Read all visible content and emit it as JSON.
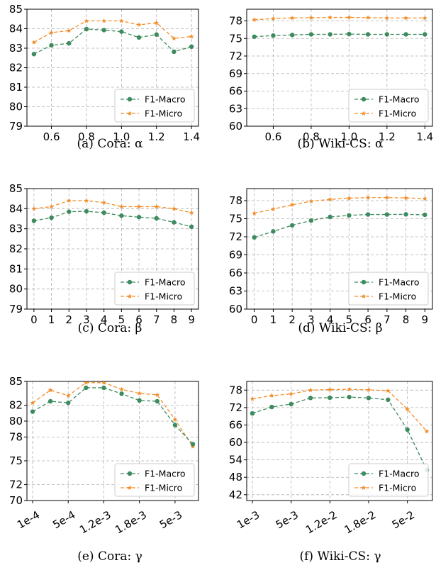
{
  "chart_data": [
    {
      "type": "line",
      "caption": "(a) Cora: α",
      "x": [
        0.5,
        0.6,
        0.7,
        0.8,
        0.9,
        1.0,
        1.1,
        1.2,
        1.3,
        1.4
      ],
      "x_ticks": [
        0.6,
        0.8,
        1.0,
        1.2,
        1.4
      ],
      "x_tick_labels": [
        "0.6",
        "0.8",
        "1.0",
        "1.2",
        "1.4"
      ],
      "xlim": [
        0.46,
        1.44
      ],
      "ylim": [
        79,
        85
      ],
      "y_ticks": [
        79,
        80,
        81,
        82,
        83,
        84,
        85
      ],
      "y_tick_labels": [
        "79",
        "80",
        "81",
        "82",
        "83",
        "84",
        "85"
      ],
      "grid": true,
      "legend_position": "lower-right",
      "series": [
        {
          "name": "F1-Macro",
          "color": "#3d8b5f",
          "marker": "circle",
          "values": [
            82.7,
            83.15,
            83.25,
            83.98,
            83.93,
            83.85,
            83.55,
            83.7,
            82.82,
            83.08
          ]
        },
        {
          "name": "F1-Micro",
          "color": "#f28e2b",
          "marker": "star",
          "values": [
            83.3,
            83.8,
            83.9,
            84.4,
            84.4,
            84.4,
            84.2,
            84.3,
            83.5,
            83.6
          ]
        }
      ]
    },
    {
      "type": "line",
      "caption": "(b) Wiki-CS: α",
      "x": [
        0.5,
        0.6,
        0.7,
        0.8,
        0.9,
        1.0,
        1.1,
        1.2,
        1.3,
        1.4
      ],
      "x_ticks": [
        0.6,
        0.8,
        1.0,
        1.2,
        1.4
      ],
      "x_tick_labels": [
        "0.6",
        "0.8",
        "1.0",
        "1.2",
        "1.4"
      ],
      "xlim": [
        0.46,
        1.44
      ],
      "ylim": [
        60,
        80
      ],
      "y_ticks": [
        60,
        63,
        66,
        69,
        72,
        75,
        78
      ],
      "y_tick_labels": [
        "60",
        "63",
        "66",
        "69",
        "72",
        "75",
        "78"
      ],
      "grid": true,
      "legend_position": "lower-right",
      "series": [
        {
          "name": "F1-Macro",
          "color": "#3d8b5f",
          "marker": "circle",
          "values": [
            75.3,
            75.5,
            75.6,
            75.7,
            75.7,
            75.75,
            75.7,
            75.7,
            75.7,
            75.7
          ]
        },
        {
          "name": "F1-Micro",
          "color": "#f28e2b",
          "marker": "star",
          "values": [
            78.2,
            78.4,
            78.5,
            78.55,
            78.6,
            78.6,
            78.55,
            78.5,
            78.5,
            78.5
          ]
        }
      ]
    },
    {
      "type": "line",
      "caption": "(c) Cora: β",
      "x": [
        0,
        1,
        2,
        3,
        4,
        5,
        6,
        7,
        8,
        9
      ],
      "x_ticks": [
        0,
        1,
        2,
        3,
        4,
        5,
        6,
        7,
        8,
        9
      ],
      "x_tick_labels": [
        "0",
        "1",
        "2",
        "3",
        "4",
        "5",
        "6",
        "7",
        "8",
        "9"
      ],
      "xlim": [
        -0.4,
        9.4
      ],
      "ylim": [
        79,
        85
      ],
      "y_ticks": [
        79,
        80,
        81,
        82,
        83,
        84,
        85
      ],
      "y_tick_labels": [
        "79",
        "80",
        "81",
        "82",
        "83",
        "84",
        "85"
      ],
      "grid": true,
      "legend_position": "lower-right",
      "series": [
        {
          "name": "F1-Macro",
          "color": "#3d8b5f",
          "marker": "circle",
          "values": [
            83.4,
            83.55,
            83.85,
            83.87,
            83.8,
            83.65,
            83.58,
            83.52,
            83.32,
            83.1
          ]
        },
        {
          "name": "F1-Micro",
          "color": "#f28e2b",
          "marker": "star",
          "values": [
            84.0,
            84.1,
            84.4,
            84.4,
            84.3,
            84.1,
            84.1,
            84.1,
            84.0,
            83.8
          ]
        }
      ]
    },
    {
      "type": "line",
      "caption": "(d) Wiki-CS: β",
      "x": [
        0,
        1,
        2,
        3,
        4,
        5,
        6,
        7,
        8,
        9
      ],
      "x_ticks": [
        0,
        1,
        2,
        3,
        4,
        5,
        6,
        7,
        8,
        9
      ],
      "x_tick_labels": [
        "0",
        "1",
        "2",
        "3",
        "4",
        "5",
        "6",
        "7",
        "8",
        "9"
      ],
      "xlim": [
        -0.4,
        9.4
      ],
      "ylim": [
        60,
        80
      ],
      "y_ticks": [
        60,
        63,
        66,
        69,
        72,
        75,
        78
      ],
      "y_tick_labels": [
        "60",
        "63",
        "66",
        "69",
        "72",
        "75",
        "78"
      ],
      "grid": true,
      "legend_position": "lower-right",
      "series": [
        {
          "name": "F1-Macro",
          "color": "#3d8b5f",
          "marker": "circle",
          "values": [
            71.9,
            72.9,
            73.9,
            74.7,
            75.3,
            75.55,
            75.7,
            75.7,
            75.72,
            75.65
          ]
        },
        {
          "name": "F1-Micro",
          "color": "#f28e2b",
          "marker": "star",
          "values": [
            75.9,
            76.6,
            77.3,
            77.9,
            78.2,
            78.4,
            78.5,
            78.5,
            78.45,
            78.35
          ]
        }
      ]
    },
    {
      "type": "line",
      "caption": "(e) Cora: γ",
      "x": [
        "1e-4",
        "3e-4",
        "5e-4",
        "8e-4",
        "1.2e-3",
        "1.5e-3",
        "1.8e-3",
        "2e-3",
        "5e-3",
        "8e-3"
      ],
      "x_tick_labels": [
        "1e-4",
        "5e-4",
        "1.2e-3",
        "1.8e-3",
        "5e-3"
      ],
      "x_tick_index": [
        0,
        2,
        4,
        6,
        8
      ],
      "ylim": [
        70,
        85
      ],
      "y_ticks": [
        70,
        72,
        75,
        78,
        80,
        82,
        85
      ],
      "y_tick_labels": [
        "70",
        "72",
        "75",
        "78",
        "80",
        "82",
        "85"
      ],
      "grid": true,
      "legend_position": "lower-right",
      "series": [
        {
          "name": "F1-Macro",
          "color": "#3d8b5f",
          "marker": "circle",
          "values": [
            81.2,
            82.5,
            82.3,
            84.2,
            84.2,
            83.45,
            82.6,
            82.5,
            79.5,
            77.1
          ]
        },
        {
          "name": "F1-Micro",
          "color": "#f28e2b",
          "marker": "star",
          "values": [
            82.3,
            83.9,
            83.2,
            84.85,
            84.85,
            84.0,
            83.5,
            83.3,
            80.2,
            76.8
          ]
        }
      ]
    },
    {
      "type": "line",
      "caption": "(f) Wiki-CS: γ",
      "x": [
        "1e-3",
        "3e-3",
        "5e-3",
        "8e-3",
        "1.2e-2",
        "1.5e-2",
        "1.8e-2",
        "2e-2",
        "5e-2",
        "8e-2"
      ],
      "x_tick_labels": [
        "1e-3",
        "5e-3",
        "1.2e-2",
        "1.8e-2",
        "5e-2"
      ],
      "x_tick_index": [
        0,
        2,
        4,
        6,
        8
      ],
      "ylim": [
        40,
        81
      ],
      "y_ticks": [
        42,
        48,
        54,
        60,
        66,
        72,
        78
      ],
      "y_tick_labels": [
        "42",
        "48",
        "54",
        "60",
        "66",
        "72",
        "78"
      ],
      "grid": true,
      "legend_position": "lower-right",
      "series": [
        {
          "name": "F1-Macro",
          "color": "#3d8b5f",
          "marker": "circle",
          "values": [
            70.0,
            72.2,
            73.2,
            75.3,
            75.4,
            75.6,
            75.3,
            74.7,
            64.4,
            50.5
          ]
        },
        {
          "name": "F1-Micro",
          "color": "#f28e2b",
          "marker": "star",
          "values": [
            75.0,
            76.1,
            76.7,
            78.0,
            78.2,
            78.3,
            78.1,
            77.8,
            71.4,
            63.8
          ]
        }
      ]
    }
  ]
}
